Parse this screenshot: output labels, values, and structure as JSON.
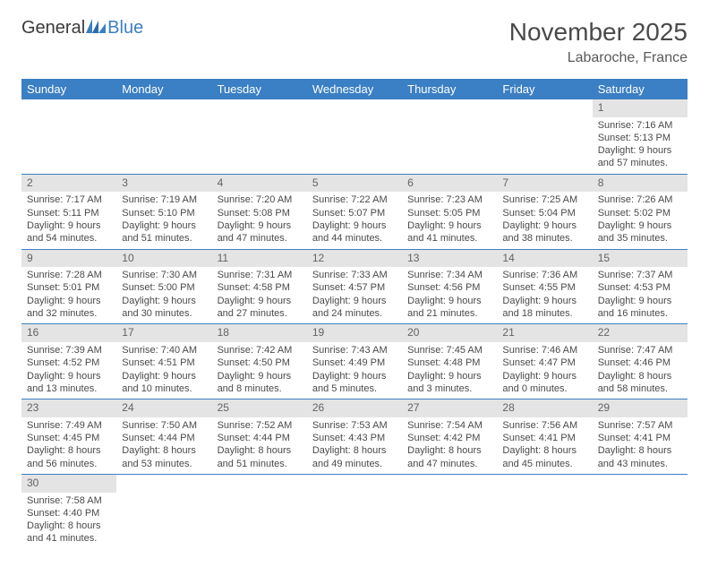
{
  "logo": {
    "text1": "General",
    "text2": "Blue"
  },
  "header": {
    "month": "November 2025",
    "location": "Labaroche, France"
  },
  "colors": {
    "header_bg": "#3b7fc4",
    "header_fg": "#ffffff",
    "daynum_bg": "#e4e4e4",
    "border": "#3b7fc4"
  },
  "dayNames": [
    "Sunday",
    "Monday",
    "Tuesday",
    "Wednesday",
    "Thursday",
    "Friday",
    "Saturday"
  ],
  "weeks": [
    [
      {
        "n": "",
        "sr": "",
        "ss": "",
        "dl": ""
      },
      {
        "n": "",
        "sr": "",
        "ss": "",
        "dl": ""
      },
      {
        "n": "",
        "sr": "",
        "ss": "",
        "dl": ""
      },
      {
        "n": "",
        "sr": "",
        "ss": "",
        "dl": ""
      },
      {
        "n": "",
        "sr": "",
        "ss": "",
        "dl": ""
      },
      {
        "n": "",
        "sr": "",
        "ss": "",
        "dl": ""
      },
      {
        "n": "1",
        "sr": "Sunrise: 7:16 AM",
        "ss": "Sunset: 5:13 PM",
        "dl": "Daylight: 9 hours and 57 minutes."
      }
    ],
    [
      {
        "n": "2",
        "sr": "Sunrise: 7:17 AM",
        "ss": "Sunset: 5:11 PM",
        "dl": "Daylight: 9 hours and 54 minutes."
      },
      {
        "n": "3",
        "sr": "Sunrise: 7:19 AM",
        "ss": "Sunset: 5:10 PM",
        "dl": "Daylight: 9 hours and 51 minutes."
      },
      {
        "n": "4",
        "sr": "Sunrise: 7:20 AM",
        "ss": "Sunset: 5:08 PM",
        "dl": "Daylight: 9 hours and 47 minutes."
      },
      {
        "n": "5",
        "sr": "Sunrise: 7:22 AM",
        "ss": "Sunset: 5:07 PM",
        "dl": "Daylight: 9 hours and 44 minutes."
      },
      {
        "n": "6",
        "sr": "Sunrise: 7:23 AM",
        "ss": "Sunset: 5:05 PM",
        "dl": "Daylight: 9 hours and 41 minutes."
      },
      {
        "n": "7",
        "sr": "Sunrise: 7:25 AM",
        "ss": "Sunset: 5:04 PM",
        "dl": "Daylight: 9 hours and 38 minutes."
      },
      {
        "n": "8",
        "sr": "Sunrise: 7:26 AM",
        "ss": "Sunset: 5:02 PM",
        "dl": "Daylight: 9 hours and 35 minutes."
      }
    ],
    [
      {
        "n": "9",
        "sr": "Sunrise: 7:28 AM",
        "ss": "Sunset: 5:01 PM",
        "dl": "Daylight: 9 hours and 32 minutes."
      },
      {
        "n": "10",
        "sr": "Sunrise: 7:30 AM",
        "ss": "Sunset: 5:00 PM",
        "dl": "Daylight: 9 hours and 30 minutes."
      },
      {
        "n": "11",
        "sr": "Sunrise: 7:31 AM",
        "ss": "Sunset: 4:58 PM",
        "dl": "Daylight: 9 hours and 27 minutes."
      },
      {
        "n": "12",
        "sr": "Sunrise: 7:33 AM",
        "ss": "Sunset: 4:57 PM",
        "dl": "Daylight: 9 hours and 24 minutes."
      },
      {
        "n": "13",
        "sr": "Sunrise: 7:34 AM",
        "ss": "Sunset: 4:56 PM",
        "dl": "Daylight: 9 hours and 21 minutes."
      },
      {
        "n": "14",
        "sr": "Sunrise: 7:36 AM",
        "ss": "Sunset: 4:55 PM",
        "dl": "Daylight: 9 hours and 18 minutes."
      },
      {
        "n": "15",
        "sr": "Sunrise: 7:37 AM",
        "ss": "Sunset: 4:53 PM",
        "dl": "Daylight: 9 hours and 16 minutes."
      }
    ],
    [
      {
        "n": "16",
        "sr": "Sunrise: 7:39 AM",
        "ss": "Sunset: 4:52 PM",
        "dl": "Daylight: 9 hours and 13 minutes."
      },
      {
        "n": "17",
        "sr": "Sunrise: 7:40 AM",
        "ss": "Sunset: 4:51 PM",
        "dl": "Daylight: 9 hours and 10 minutes."
      },
      {
        "n": "18",
        "sr": "Sunrise: 7:42 AM",
        "ss": "Sunset: 4:50 PM",
        "dl": "Daylight: 9 hours and 8 minutes."
      },
      {
        "n": "19",
        "sr": "Sunrise: 7:43 AM",
        "ss": "Sunset: 4:49 PM",
        "dl": "Daylight: 9 hours and 5 minutes."
      },
      {
        "n": "20",
        "sr": "Sunrise: 7:45 AM",
        "ss": "Sunset: 4:48 PM",
        "dl": "Daylight: 9 hours and 3 minutes."
      },
      {
        "n": "21",
        "sr": "Sunrise: 7:46 AM",
        "ss": "Sunset: 4:47 PM",
        "dl": "Daylight: 9 hours and 0 minutes."
      },
      {
        "n": "22",
        "sr": "Sunrise: 7:47 AM",
        "ss": "Sunset: 4:46 PM",
        "dl": "Daylight: 8 hours and 58 minutes."
      }
    ],
    [
      {
        "n": "23",
        "sr": "Sunrise: 7:49 AM",
        "ss": "Sunset: 4:45 PM",
        "dl": "Daylight: 8 hours and 56 minutes."
      },
      {
        "n": "24",
        "sr": "Sunrise: 7:50 AM",
        "ss": "Sunset: 4:44 PM",
        "dl": "Daylight: 8 hours and 53 minutes."
      },
      {
        "n": "25",
        "sr": "Sunrise: 7:52 AM",
        "ss": "Sunset: 4:44 PM",
        "dl": "Daylight: 8 hours and 51 minutes."
      },
      {
        "n": "26",
        "sr": "Sunrise: 7:53 AM",
        "ss": "Sunset: 4:43 PM",
        "dl": "Daylight: 8 hours and 49 minutes."
      },
      {
        "n": "27",
        "sr": "Sunrise: 7:54 AM",
        "ss": "Sunset: 4:42 PM",
        "dl": "Daylight: 8 hours and 47 minutes."
      },
      {
        "n": "28",
        "sr": "Sunrise: 7:56 AM",
        "ss": "Sunset: 4:41 PM",
        "dl": "Daylight: 8 hours and 45 minutes."
      },
      {
        "n": "29",
        "sr": "Sunrise: 7:57 AM",
        "ss": "Sunset: 4:41 PM",
        "dl": "Daylight: 8 hours and 43 minutes."
      }
    ],
    [
      {
        "n": "30",
        "sr": "Sunrise: 7:58 AM",
        "ss": "Sunset: 4:40 PM",
        "dl": "Daylight: 8 hours and 41 minutes."
      },
      {
        "n": "",
        "sr": "",
        "ss": "",
        "dl": ""
      },
      {
        "n": "",
        "sr": "",
        "ss": "",
        "dl": ""
      },
      {
        "n": "",
        "sr": "",
        "ss": "",
        "dl": ""
      },
      {
        "n": "",
        "sr": "",
        "ss": "",
        "dl": ""
      },
      {
        "n": "",
        "sr": "",
        "ss": "",
        "dl": ""
      },
      {
        "n": "",
        "sr": "",
        "ss": "",
        "dl": ""
      }
    ]
  ]
}
